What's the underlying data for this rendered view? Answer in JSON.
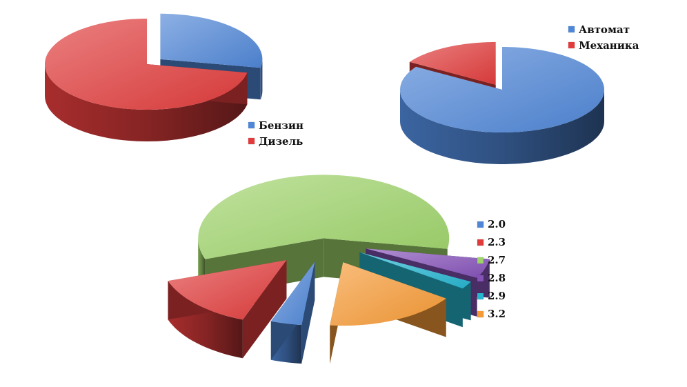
{
  "chart_data": [
    {
      "type": "pie",
      "categories": [
        "Бензин",
        "Дизель"
      ],
      "values": [
        28,
        72
      ],
      "colors": [
        "#4f86d6",
        "#e03c3c"
      ],
      "legend": "right-bottom",
      "exploded": "Бензин"
    },
    {
      "type": "pie",
      "categories": [
        "Автомат",
        "Механика"
      ],
      "values": [
        84,
        16
      ],
      "colors": [
        "#4f86d6",
        "#e03c3c"
      ],
      "legend": "top-right",
      "exploded": "Механика"
    },
    {
      "type": "pie",
      "categories": [
        "2.0",
        "2.3",
        "2.7",
        "2.8",
        "2.9",
        "3.2"
      ],
      "values": [
        4,
        14,
        58,
        5,
        2,
        17
      ],
      "colors": [
        "#4f86d6",
        "#e03c3c",
        "#9ed36a",
        "#8552b8",
        "#27b5cf",
        "#f59a35"
      ],
      "legend": "right",
      "exploded": "all"
    }
  ]
}
